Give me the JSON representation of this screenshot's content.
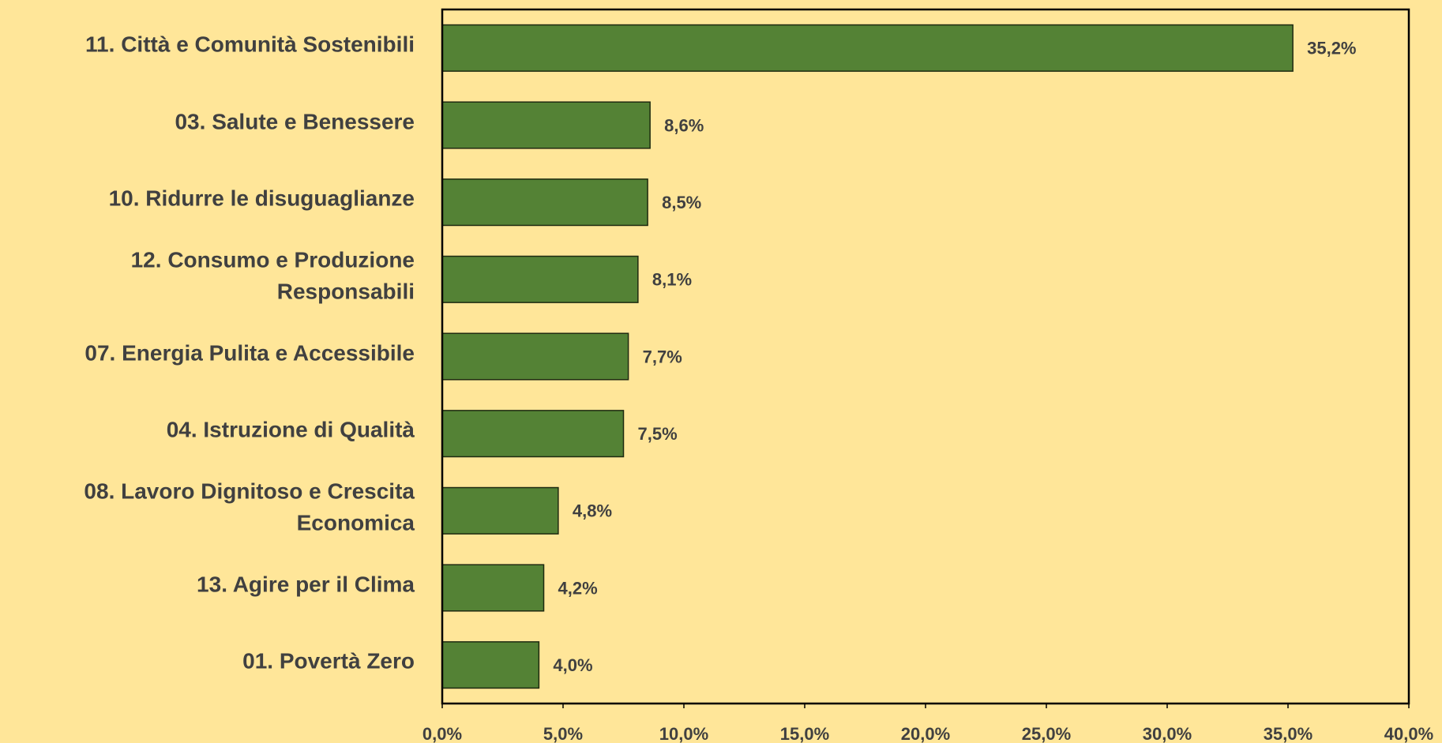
{
  "chart_data": {
    "type": "bar",
    "orientation": "horizontal",
    "categories": [
      "11. Città e Comunità Sostenibili",
      "03. Salute e Benessere",
      "10. Ridurre le disuguaglianze",
      "12. Consumo e Produzione Responsabili",
      "07. Energia Pulita e Accessibile",
      "04. Istruzione di Qualità",
      "08. Lavoro Dignitoso e Crescita Economica",
      "13. Agire per il Clima",
      "01. Povertà Zero"
    ],
    "values": [
      35.2,
      8.6,
      8.5,
      8.1,
      7.7,
      7.5,
      4.8,
      4.2,
      4.0
    ],
    "value_labels": [
      "35,2%",
      "8,6%",
      "8,5%",
      "8,1%",
      "7,7%",
      "7,5%",
      "4,8%",
      "4,2%",
      "4,0%"
    ],
    "color": "#548235",
    "xlim": [
      0,
      40
    ],
    "xticks": [
      {
        "value": 0,
        "label": "0,0%"
      },
      {
        "value": 5,
        "label": "5,0%"
      },
      {
        "value": 10,
        "label": "10,0%"
      },
      {
        "value": 15,
        "label": "15,0%"
      },
      {
        "value": 20,
        "label": "20,0%"
      },
      {
        "value": 25,
        "label": "25,0%"
      },
      {
        "value": 30,
        "label": "30,0%"
      },
      {
        "value": 35,
        "label": "35,0%"
      },
      {
        "value": 40,
        "label": "40,0%"
      }
    ]
  }
}
